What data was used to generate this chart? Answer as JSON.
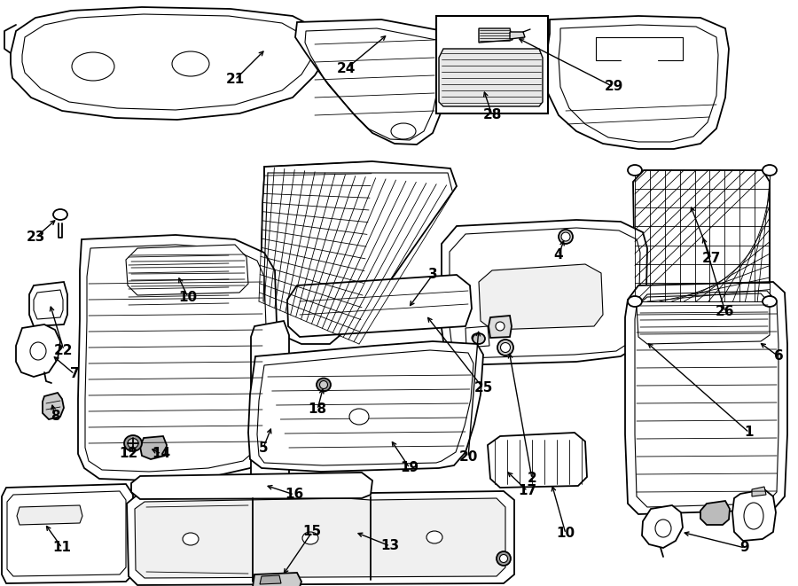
{
  "bg_color": "#ffffff",
  "line_color": "#000000",
  "fig_width": 9.0,
  "fig_height": 6.61,
  "dpi": 100,
  "lw_main": 1.3,
  "lw_inner": 0.8,
  "lw_hatch": 0.6
}
